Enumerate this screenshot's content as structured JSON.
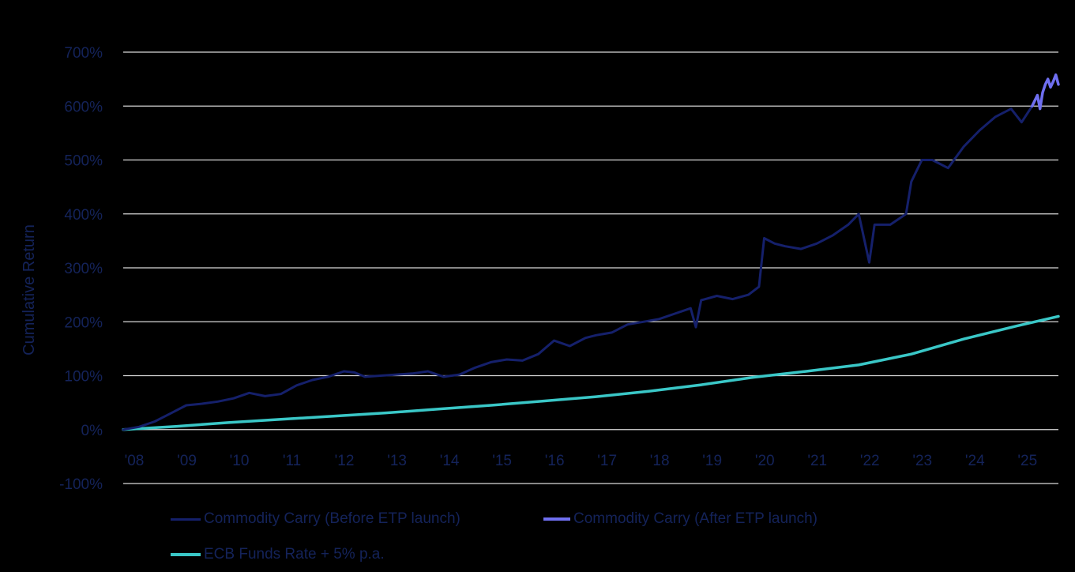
{
  "colors": {
    "background": "#000000",
    "gridline": "#d9d9d9",
    "axis_text": "#14235a",
    "before_launch": "#15206b",
    "after_launch": "#6f6ff0",
    "benchmark": "#3ac7c7"
  },
  "chart_data": {
    "type": "line",
    "title": "",
    "xlabel": "",
    "ylabel": "Cumulative Return",
    "x_ticks": [
      "'08",
      "'09",
      "'10",
      "'11",
      "'12",
      "'13",
      "'14",
      "'15",
      "'16",
      "'17",
      "'18",
      "'19",
      "'20",
      "'21",
      "'22",
      "'23",
      "'24",
      "'25"
    ],
    "x_tick_years": [
      2008,
      2009,
      2010,
      2011,
      2012,
      2013,
      2014,
      2015,
      2016,
      2017,
      2018,
      2019,
      2020,
      2021,
      2022,
      2023,
      2024,
      2025
    ],
    "xlim": [
      2008.0,
      2025.8
    ],
    "y_ticks": [
      "-100%",
      "0%",
      "100%",
      "200%",
      "300%",
      "400%",
      "500%",
      "600%",
      "700%"
    ],
    "y_tick_values": [
      -100,
      0,
      100,
      200,
      300,
      400,
      500,
      600,
      700
    ],
    "ylim": [
      -100,
      700
    ],
    "grid": true,
    "legend_position": "bottom",
    "series": [
      {
        "name": "Commodity Carry (Before ETP launch)",
        "color": "#15206b",
        "x": [
          2008.0,
          2008.3,
          2008.6,
          2008.9,
          2009.2,
          2009.5,
          2009.8,
          2010.1,
          2010.4,
          2010.7,
          2011.0,
          2011.3,
          2011.6,
          2011.9,
          2012.2,
          2012.4,
          2012.6,
          2012.9,
          2013.2,
          2013.5,
          2013.8,
          2014.1,
          2014.4,
          2014.7,
          2015.0,
          2015.3,
          2015.6,
          2015.9,
          2016.2,
          2016.5,
          2016.8,
          2017.0,
          2017.3,
          2017.6,
          2017.9,
          2018.2,
          2018.5,
          2018.8,
          2018.9,
          2019.0,
          2019.3,
          2019.6,
          2019.9,
          2020.1,
          2020.2,
          2020.4,
          2020.6,
          2020.9,
          2021.2,
          2021.5,
          2021.8,
          2022.0,
          2022.2,
          2022.3,
          2022.6,
          2022.9,
          2023.0,
          2023.2,
          2023.4,
          2023.7,
          2024.0,
          2024.3,
          2024.6,
          2024.9,
          2025.1,
          2025.3
        ],
        "values": [
          0,
          5,
          15,
          30,
          45,
          48,
          52,
          58,
          68,
          62,
          66,
          82,
          92,
          98,
          108,
          106,
          98,
          100,
          102,
          104,
          108,
          98,
          102,
          115,
          125,
          130,
          128,
          140,
          165,
          155,
          170,
          175,
          180,
          195,
          200,
          205,
          215,
          225,
          190,
          240,
          248,
          242,
          250,
          265,
          355,
          345,
          340,
          335,
          345,
          360,
          380,
          400,
          310,
          380,
          380,
          400,
          460,
          500,
          500,
          485,
          525,
          555,
          580,
          595,
          570,
          600
        ]
      },
      {
        "name": "Commodity Carry (After ETP launch)",
        "color": "#6f6ff0",
        "x": [
          2025.3,
          2025.4,
          2025.45,
          2025.5,
          2025.55,
          2025.6,
          2025.65,
          2025.7,
          2025.75,
          2025.8
        ],
        "values": [
          600,
          620,
          595,
          625,
          640,
          650,
          635,
          645,
          658,
          640
        ]
      },
      {
        "name": "ECB Funds Rate + 5% p.a.",
        "color": "#3ac7c7",
        "x": [
          2008,
          2009,
          2010,
          2011,
          2012,
          2013,
          2014,
          2015,
          2016,
          2017,
          2018,
          2019,
          2020,
          2021,
          2022,
          2023,
          2024,
          2025,
          2025.8
        ],
        "values": [
          0,
          6,
          13,
          19,
          25,
          31,
          38,
          45,
          53,
          61,
          71,
          83,
          97,
          108,
          120,
          140,
          168,
          192,
          210
        ]
      }
    ]
  }
}
